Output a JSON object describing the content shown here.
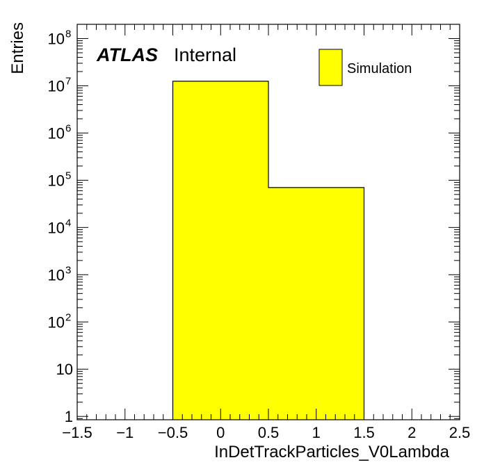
{
  "chart_data": {
    "type": "bar",
    "histogram": true,
    "xlabel": "InDetTrackParticles_V0Lambda",
    "ylabel": "Entries",
    "xlim": [
      -1.5,
      2.5
    ],
    "ylim": [
      0.85,
      200000000
    ],
    "yscale": "log",
    "x_ticks": [
      -1.5,
      -1,
      -0.5,
      0,
      0.5,
      1,
      1.5,
      2,
      2.5
    ],
    "x_tick_labels": [
      "−1.5",
      "−1",
      "−0.5",
      "0",
      "0.5",
      "1",
      "1.5",
      "2",
      "2.5"
    ],
    "y_ticks": [
      {
        "value": 1,
        "base": "1",
        "exp": ""
      },
      {
        "value": 10,
        "base": "10",
        "exp": ""
      },
      {
        "value": 100,
        "base": "10",
        "exp": "2"
      },
      {
        "value": 1000,
        "base": "10",
        "exp": "3"
      },
      {
        "value": 10000,
        "base": "10",
        "exp": "4"
      },
      {
        "value": 100000,
        "base": "10",
        "exp": "5"
      },
      {
        "value": 1000000,
        "base": "10",
        "exp": "6"
      },
      {
        "value": 10000000,
        "base": "10",
        "exp": "7"
      },
      {
        "value": 100000000,
        "base": "10",
        "exp": "8"
      }
    ],
    "bins": [
      {
        "low": -0.5,
        "high": 0.5,
        "value": 12500000
      },
      {
        "low": 0.5,
        "high": 1.5,
        "value": 70000
      }
    ],
    "series": [
      {
        "name": "Simulation",
        "color": "#ffff00"
      }
    ],
    "legend_position": "top-right",
    "grid": false
  },
  "annotations": {
    "atlas": "ATLAS",
    "internal": "Internal"
  }
}
